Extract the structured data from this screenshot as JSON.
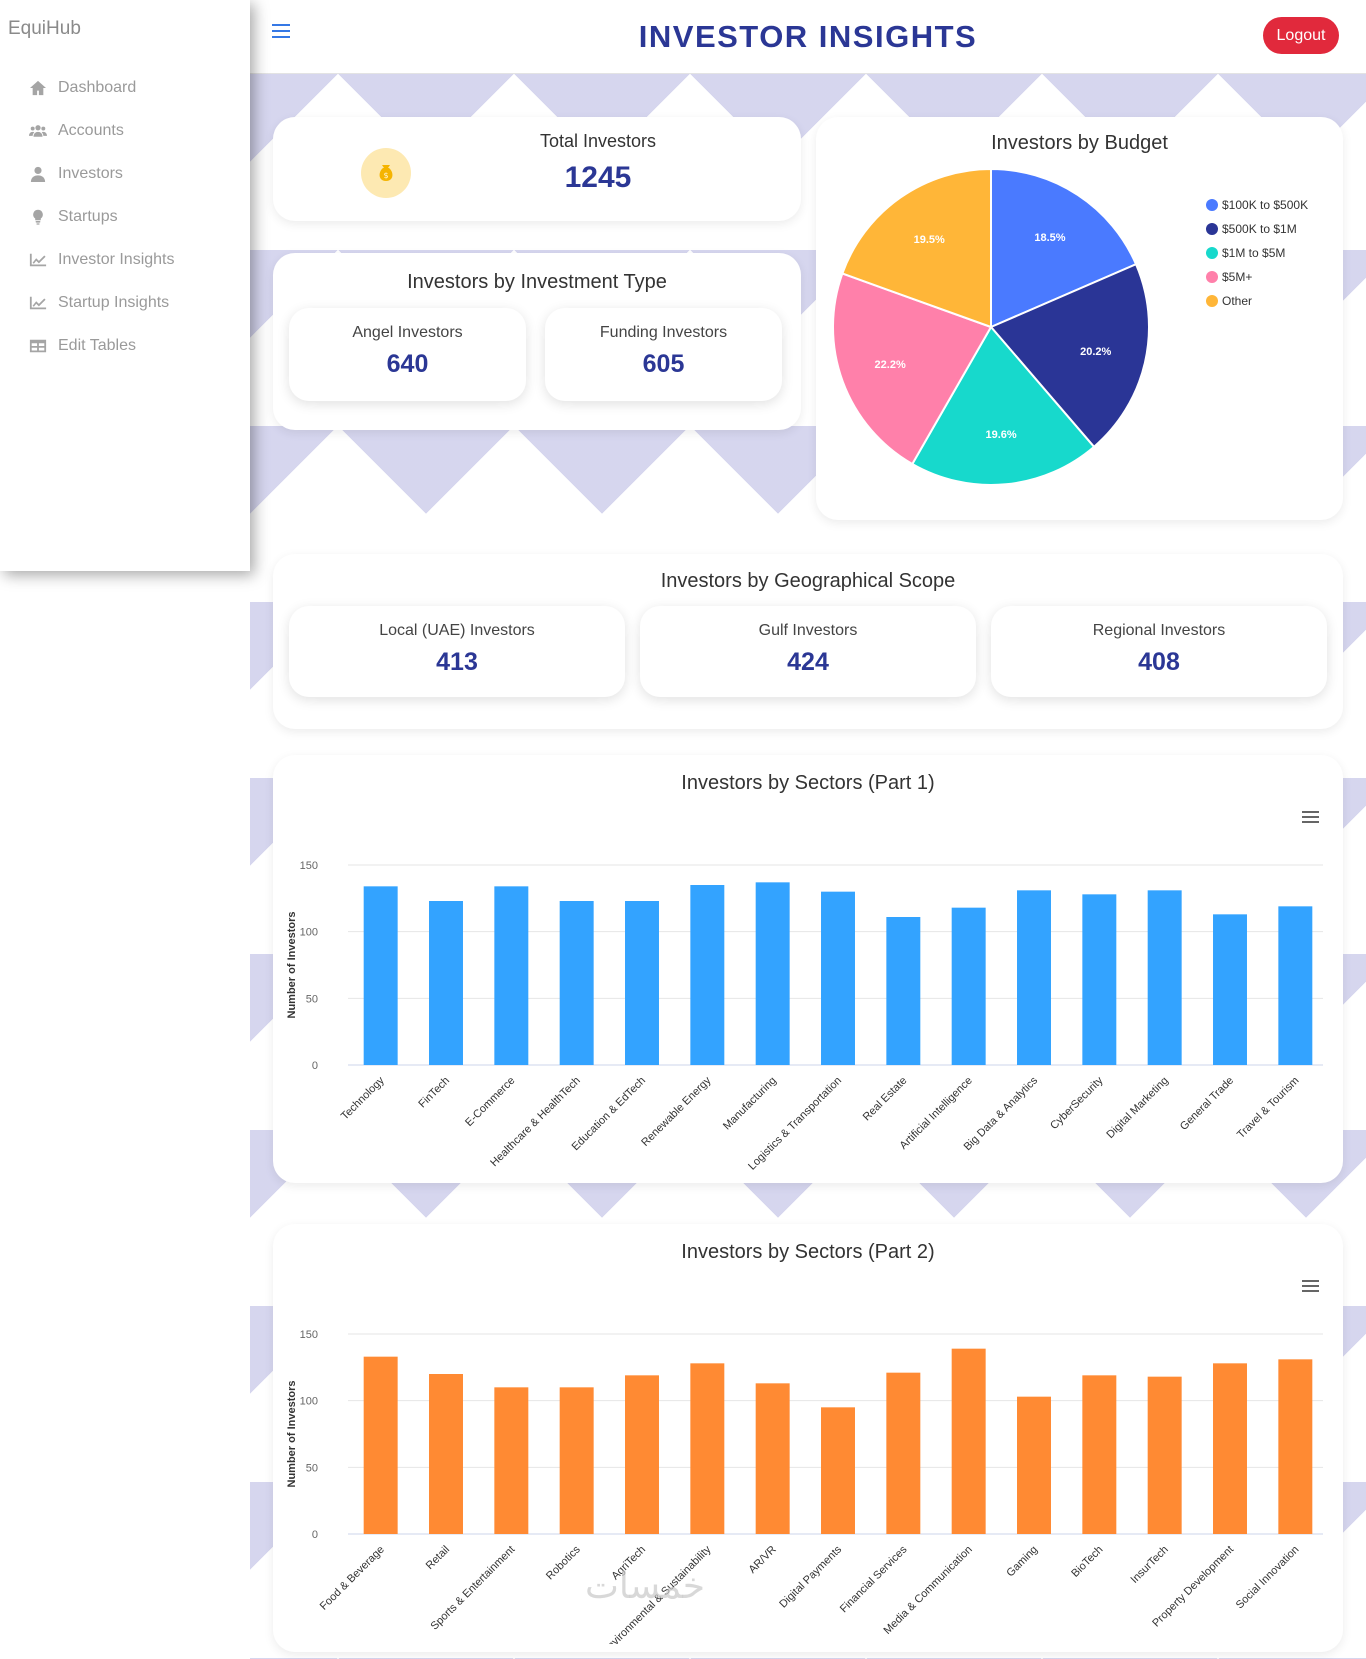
{
  "brand": "EquiHub",
  "sidebar": {
    "items": [
      {
        "label": "Dashboard",
        "icon": "home-icon"
      },
      {
        "label": "Accounts",
        "icon": "users-icon"
      },
      {
        "label": "Investors",
        "icon": "user-icon"
      },
      {
        "label": "Startups",
        "icon": "lightbulb-icon"
      },
      {
        "label": "Investor Insights",
        "icon": "line-chart-icon"
      },
      {
        "label": "Startup Insights",
        "icon": "line-chart-icon"
      },
      {
        "label": "Edit Tables",
        "icon": "table-icon"
      }
    ]
  },
  "header": {
    "title": "INVESTOR INSIGHTS",
    "logout_label": "Logout"
  },
  "total_investors": {
    "label": "Total Investors",
    "value": "1245"
  },
  "investment_type": {
    "title": "Investors by Investment Type",
    "angel": {
      "label": "Angel Investors",
      "value": "640"
    },
    "funding": {
      "label": "Funding Investors",
      "value": "605"
    }
  },
  "geo": {
    "title": "Investors by Geographical Scope",
    "local": {
      "label": "Local (UAE) Investors",
      "value": "413"
    },
    "gulf": {
      "label": "Gulf Investors",
      "value": "424"
    },
    "regional": {
      "label": "Regional Investors",
      "value": "408"
    }
  },
  "budget": {
    "title": "Investors by Budget"
  },
  "sectors1": {
    "title": "Investors by Sectors (Part 1)"
  },
  "sectors2": {
    "title": "Investors by Sectors (Part 2)"
  },
  "watermark": "خمسات",
  "chart_data": [
    {
      "type": "pie",
      "title": "Investors by Budget",
      "legend_placement": "right",
      "slices": [
        {
          "label": "$100K to $500K",
          "pct": 18.5,
          "text": "18.5%",
          "color": "#4a7aff"
        },
        {
          "label": "$500K to $1M",
          "pct": 20.2,
          "text": "20.2%",
          "color": "#2a3596"
        },
        {
          "label": "$1M to $5M",
          "pct": 19.6,
          "text": "19.6%",
          "color": "#17d9cc"
        },
        {
          "label": "$5M+",
          "pct": 22.2,
          "text": "22.2%",
          "color": "#ff80aa"
        },
        {
          "label": "Other",
          "pct": 19.5,
          "text": "19.5%",
          "color": "#ffb638"
        }
      ]
    },
    {
      "type": "bar",
      "title": "Investors by Sectors (Part 1)",
      "ylabel": "Number of Investors",
      "ylim": [
        0,
        150
      ],
      "yticks": [
        0,
        50,
        100,
        150
      ],
      "color": "#33a3ff",
      "categories": [
        "Technology",
        "FinTech",
        "E-Commerce",
        "Healthcare & HealthTech",
        "Education & EdTech",
        "Renewable Energy",
        "Manufacturing",
        "Logistics & Transportation",
        "Real Estate",
        "Artificial Intelligence",
        "Big Data & Analytics",
        "CyberSecurity",
        "Digital Marketing",
        "General Trade",
        "Travel & Tourism"
      ],
      "values": [
        134,
        123,
        134,
        123,
        123,
        135,
        137,
        130,
        111,
        118,
        131,
        128,
        131,
        113,
        119
      ]
    },
    {
      "type": "bar",
      "title": "Investors by Sectors (Part 2)",
      "ylabel": "Number of Investors",
      "ylim": [
        0,
        150
      ],
      "yticks": [
        0,
        50,
        100,
        150
      ],
      "color": "#ff8a33",
      "categories": [
        "Food & Beverage",
        "Retail",
        "Sports & Entertainment",
        "Robotics",
        "AgriTech",
        "Environmental & Sustainability",
        "AR/VR",
        "Digital Payments",
        "Financial Services",
        "Media & Communication",
        "Gaming",
        "BioTech",
        "InsurTech",
        "Property Development",
        "Social Innovation"
      ],
      "values": [
        133,
        120,
        110,
        110,
        119,
        128,
        113,
        95,
        121,
        139,
        103,
        119,
        118,
        128,
        131
      ]
    }
  ]
}
